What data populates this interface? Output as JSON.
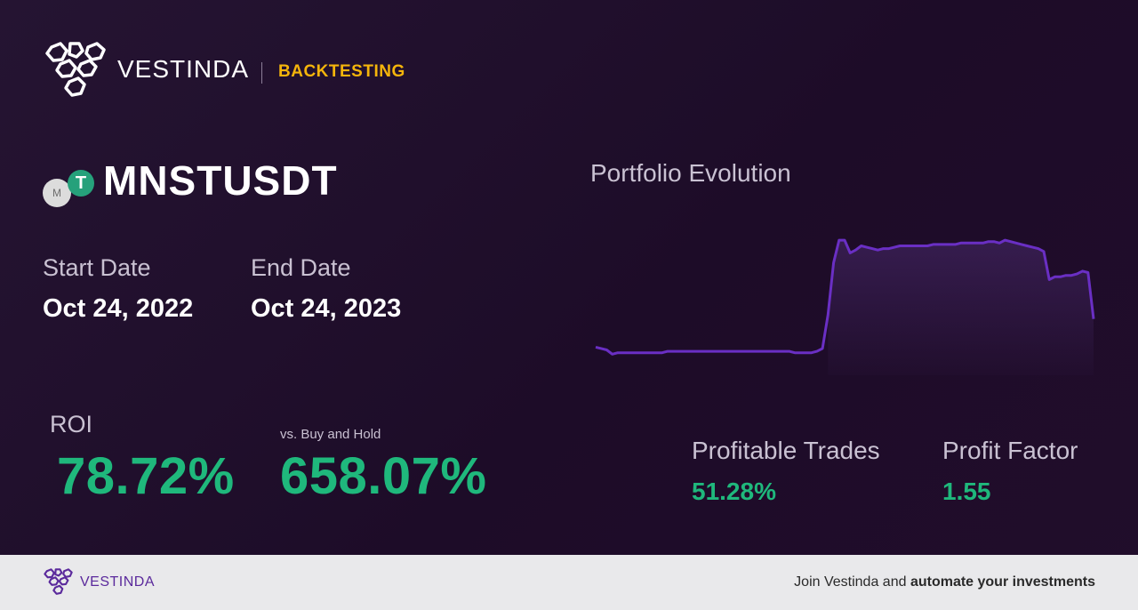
{
  "header": {
    "brand": "VESTINDA",
    "section": "BACKTESTING"
  },
  "asset": {
    "ticker": "MNSTUSDT",
    "base_icon": "M",
    "quote_icon": "T",
    "base_color": "#dcdcdc",
    "quote_color": "#26a17b"
  },
  "dates": {
    "start_label": "Start Date",
    "start_value": "Oct 24, 2022",
    "end_label": "End Date",
    "end_value": "Oct 24, 2023"
  },
  "roi": {
    "label": "ROI",
    "value": "78.72%",
    "vs_label": "vs. Buy and Hold",
    "vs_value": "658.07%"
  },
  "stats": {
    "profitable_label": "Profitable Trades",
    "profitable_value": "51.28%",
    "factor_label": "Profit Factor",
    "factor_value": "1.55"
  },
  "chart_title": "Portfolio Evolution",
  "chart_data": {
    "type": "line",
    "series": [
      {
        "values": [
          100,
          99,
          98,
          95,
          96,
          96,
          96,
          96,
          96,
          96,
          96,
          96,
          96,
          97,
          97,
          97,
          97,
          97,
          97,
          97,
          97,
          97,
          97,
          97,
          97,
          97,
          97,
          97,
          97,
          97,
          97,
          97,
          97,
          97,
          97,
          97,
          96,
          96,
          96,
          96,
          97,
          99,
          123,
          160,
          176,
          176,
          167,
          169,
          172,
          171,
          170,
          169,
          170,
          170,
          171,
          172,
          172,
          172,
          172,
          172,
          172,
          173,
          173,
          173,
          173,
          173,
          174,
          174,
          174,
          174,
          174,
          175,
          175,
          174,
          176,
          175,
          174,
          173,
          172,
          171,
          170,
          168,
          148,
          150,
          150,
          151,
          151,
          152,
          154,
          153,
          120
        ],
        "color": "#6a2fc4"
      }
    ],
    "ylim": [
      80,
      190
    ]
  },
  "colors": {
    "accent_green": "#1fb87c",
    "accent_yellow": "#f5b50b",
    "line": "#6a2fc4"
  },
  "footer": {
    "brand": "VESTINDA",
    "cta_text": "Join Vestinda and ",
    "cta_bold": "automate your investments"
  }
}
